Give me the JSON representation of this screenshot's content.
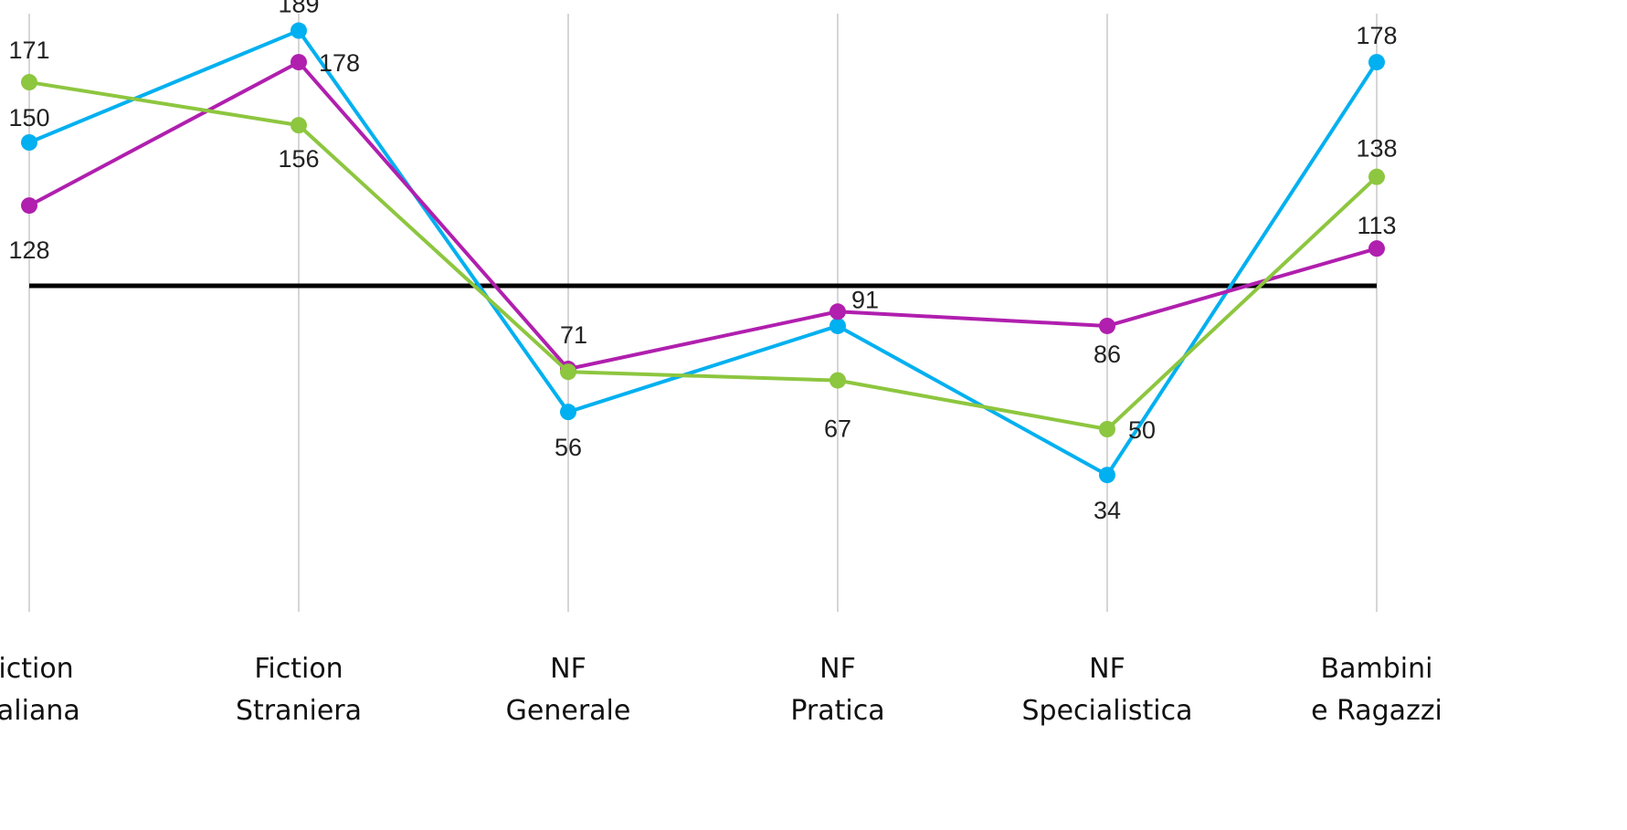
{
  "chart_data": {
    "type": "line",
    "title": "",
    "xlabel": "",
    "ylabel": "",
    "categories": [
      [
        "Fiction",
        "Italiana"
      ],
      [
        "Fiction",
        "Straniera"
      ],
      [
        "NF",
        "Generale"
      ],
      [
        "NF",
        "Pratica"
      ],
      [
        "NF",
        "Specialistica"
      ],
      [
        "Bambini",
        "e Ragazzi"
      ]
    ],
    "ylim": [
      0,
      210
    ],
    "reference_line": 100,
    "grid": "vertical",
    "legend": "none",
    "series": [
      {
        "color": "#00b0f0",
        "values": [
          150,
          189,
          56,
          86,
          34,
          178
        ],
        "labels": [
          "150",
          "189",
          "56",
          "",
          "34",
          "178"
        ]
      },
      {
        "color": "#b01fae",
        "values": [
          128,
          178,
          71,
          91,
          86,
          113
        ],
        "labels": [
          "128",
          "178",
          "71",
          "91",
          "86",
          "113"
        ]
      },
      {
        "color": "#8dc63f",
        "values": [
          171,
          156,
          70,
          67,
          50,
          138
        ],
        "labels": [
          "171",
          "156",
          "",
          "67",
          "50",
          "138"
        ]
      }
    ]
  }
}
